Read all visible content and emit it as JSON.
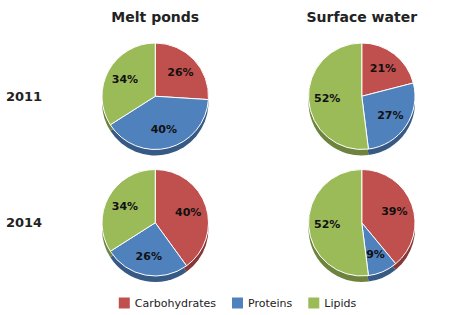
{
  "chart_data": {
    "type": "pie",
    "categories": [
      "Carbohydrates",
      "Proteins",
      "Lipids"
    ],
    "colors": [
      "#C0504D",
      "#4F81BD",
      "#9BBB59"
    ],
    "columns": [
      "Melt ponds",
      "Surface water"
    ],
    "rows": [
      "2011",
      "2014"
    ],
    "legend": "bottom",
    "data_labels": true,
    "series": [
      {
        "values": [
          26,
          40,
          34
        ],
        "value_labels": [
          "26%",
          "40%",
          "34%"
        ]
      },
      {
        "values": [
          21,
          27,
          52
        ],
        "value_labels": [
          "21%",
          "27%",
          "52%"
        ]
      },
      {
        "values": [
          40,
          26,
          34
        ],
        "value_labels": [
          "40%",
          "26%",
          "34%"
        ]
      },
      {
        "values": [
          39,
          9,
          52
        ],
        "value_labels": [
          "39%",
          "9%",
          "52%"
        ]
      }
    ]
  }
}
